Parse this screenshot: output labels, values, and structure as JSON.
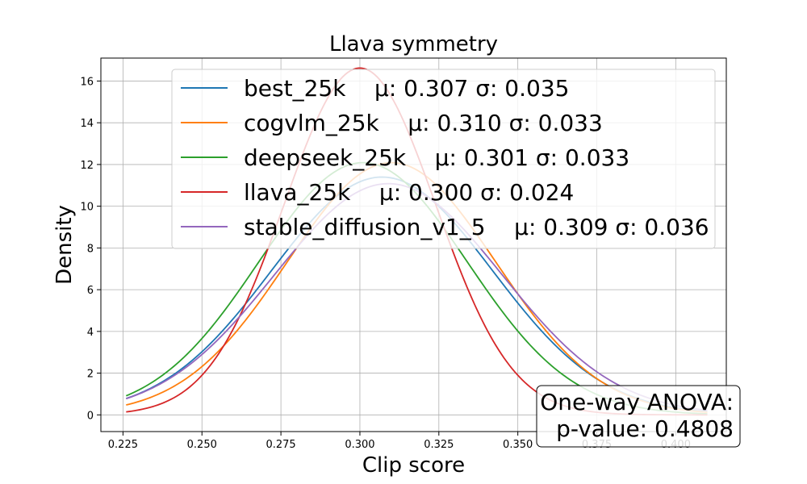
{
  "chart_data": {
    "type": "line",
    "title": "Llava symmetry",
    "xlabel": "Clip score",
    "ylabel": "Density",
    "xlim": [
      0.218,
      0.416
    ],
    "ylim": [
      -0.8,
      17.1
    ],
    "x_range": [
      0.226,
      0.41
    ],
    "xticks": [
      0.225,
      0.25,
      0.275,
      0.3,
      0.325,
      0.35,
      0.375,
      0.4
    ],
    "xtick_labels": [
      "0.225",
      "0.250",
      "0.275",
      "0.300",
      "0.325",
      "0.350",
      "0.375",
      "0.400"
    ],
    "yticks": [
      0,
      2,
      4,
      6,
      8,
      10,
      12,
      14,
      16
    ],
    "ytick_labels": [
      "0",
      "2",
      "4",
      "6",
      "8",
      "10",
      "12",
      "14",
      "16"
    ],
    "grid": true,
    "legend_position": "top-right",
    "series": [
      {
        "name": "best_25k",
        "label": "best_25k    μ: 0.307 σ: 0.035",
        "mean": 0.307,
        "std": 0.035,
        "color": "#1f77b4"
      },
      {
        "name": "cogvlm_25k",
        "label": "cogvlm_25k    μ: 0.310 σ: 0.033",
        "mean": 0.31,
        "std": 0.033,
        "color": "#ff7f0e"
      },
      {
        "name": "deepseek_25k",
        "label": "deepseek_25k    μ: 0.301 σ: 0.033",
        "mean": 0.301,
        "std": 0.033,
        "color": "#2ca02c"
      },
      {
        "name": "llava_25k",
        "label": "llava_25k    μ: 0.300 σ: 0.024",
        "mean": 0.3,
        "std": 0.024,
        "color": "#d62728"
      },
      {
        "name": "stable_diffusion_v1_5",
        "label": "stable_diffusion_v1_5    μ: 0.309 σ: 0.036",
        "mean": 0.309,
        "std": 0.036,
        "color": "#9467bd"
      }
    ],
    "annotation": {
      "line1": "One-way ANOVA:",
      "line2": "p-value: 0.4808",
      "position": "bottom-right"
    }
  }
}
